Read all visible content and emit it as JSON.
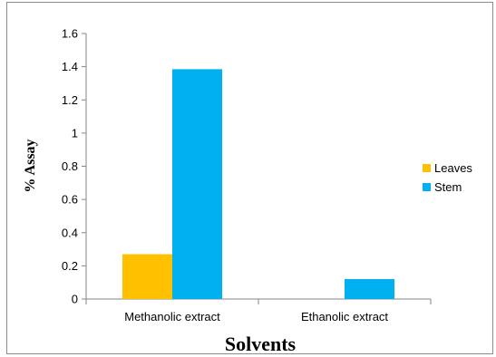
{
  "chart_data": {
    "type": "bar",
    "categories": [
      "Methanolic extract",
      "Ethanolic extract"
    ],
    "series": [
      {
        "name": "Leaves",
        "values": [
          0.27,
          0
        ],
        "color": "#FFC000"
      },
      {
        "name": "Stem",
        "values": [
          1.385,
          0.12
        ],
        "color": "#00B0F0"
      }
    ],
    "ylabel": "% Assay",
    "xlabel": "Solvents",
    "ylim": [
      0,
      1.6
    ],
    "yticks": [
      "0",
      "0.2",
      "0.4",
      "0.6",
      "0.8",
      "1",
      "1.2",
      "1.4",
      "1.6"
    ],
    "grid": false,
    "legend_position": "right"
  }
}
